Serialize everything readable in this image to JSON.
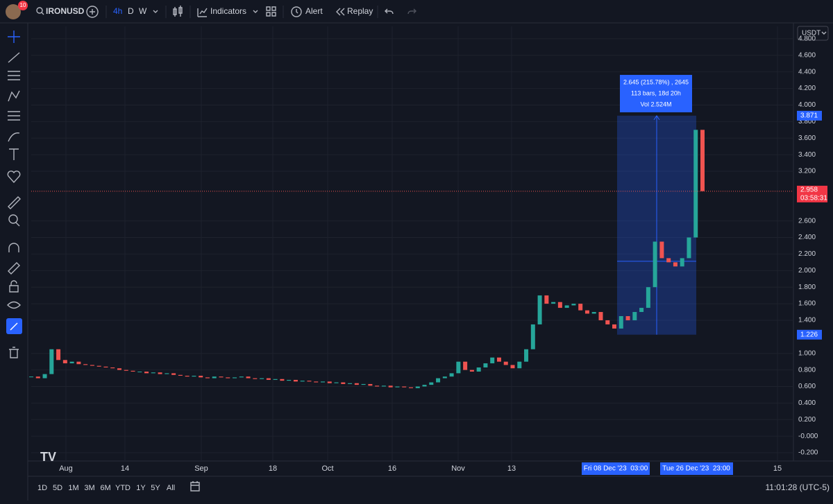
{
  "toolbar": {
    "notifications": "10",
    "symbol": "IRONUSD",
    "intervals": [
      "4h",
      "D",
      "W"
    ],
    "indicators": "Indicators",
    "alert": "Alert",
    "replay": "Replay"
  },
  "chart_data": {
    "type": "candlestick",
    "currency": "USDT",
    "ylim": [
      -0.3,
      4.95
    ],
    "yticks": [
      {
        "value": 4.8,
        "label": "4.800"
      },
      {
        "value": 4.6,
        "label": "4.600"
      },
      {
        "value": 4.4,
        "label": "4.400"
      },
      {
        "value": 4.2,
        "label": "4.200"
      },
      {
        "value": 4.0,
        "label": "4.000"
      },
      {
        "value": 3.8,
        "label": "3.800"
      },
      {
        "value": 3.6,
        "label": "3.600"
      },
      {
        "value": 3.4,
        "label": "3.400"
      },
      {
        "value": 3.2,
        "label": "3.200"
      },
      {
        "value": 2.6,
        "label": "2.600"
      },
      {
        "value": 2.4,
        "label": "2.400"
      },
      {
        "value": 2.2,
        "label": "2.200"
      },
      {
        "value": 2.0,
        "label": "2.000"
      },
      {
        "value": 1.8,
        "label": "1.800"
      },
      {
        "value": 1.6,
        "label": "1.600"
      },
      {
        "value": 1.4,
        "label": "1.400"
      },
      {
        "value": 1.0,
        "label": "1.000"
      },
      {
        "value": 0.8,
        "label": "0.800"
      },
      {
        "value": 0.6,
        "label": "0.600"
      },
      {
        "value": 0.4,
        "label": "0.400"
      },
      {
        "value": 0.2,
        "label": "0.200"
      },
      {
        "value": 0,
        "label": "-0.000"
      },
      {
        "value": -0.2,
        "label": "-0.200"
      }
    ],
    "x_labels": [
      "Aug",
      "14",
      "Sep",
      "18",
      "Oct",
      "16",
      "Nov",
      "13",
      "15"
    ],
    "closes": [
      0.72,
      0.7,
      0.75,
      1.05,
      0.92,
      0.88,
      0.9,
      0.87,
      0.86,
      0.85,
      0.84,
      0.83,
      0.82,
      0.8,
      0.79,
      0.78,
      0.78,
      0.76,
      0.77,
      0.75,
      0.76,
      0.74,
      0.73,
      0.72,
      0.73,
      0.71,
      0.7,
      0.72,
      0.71,
      0.7,
      0.71,
      0.72,
      0.7,
      0.69,
      0.7,
      0.68,
      0.69,
      0.67,
      0.68,
      0.66,
      0.67,
      0.66,
      0.65,
      0.66,
      0.64,
      0.65,
      0.63,
      0.64,
      0.62,
      0.63,
      0.61,
      0.6,
      0.61,
      0.59,
      0.6,
      0.59,
      0.58,
      0.6,
      0.62,
      0.65,
      0.7,
      0.72,
      0.76,
      0.9,
      0.8,
      0.78,
      0.83,
      0.88,
      0.95,
      0.9,
      0.86,
      0.82,
      0.9,
      1.05,
      1.35,
      1.7,
      1.6,
      1.62,
      1.55,
      1.58,
      1.6,
      1.52,
      1.48,
      1.5,
      1.4,
      1.35,
      1.3,
      1.45,
      1.4,
      1.5,
      1.55,
      1.8,
      2.35,
      2.15,
      2.1,
      2.05,
      2.15,
      2.4,
      3.7,
      2.96
    ],
    "current_price": 2.958,
    "countdown": "03:58:31",
    "measure": {
      "high": 3.871,
      "low": 1.226,
      "lines": [
        "2.645 (215.78%) , 2645",
        "113 bars, 18d 20h",
        "Vol 2.524M"
      ],
      "start": "Fri 08 Dec '23  03:00",
      "end": "Tue 26 Dec '23  23:00"
    }
  },
  "ranges": [
    "1D",
    "5D",
    "1M",
    "3M",
    "6M",
    "YTD",
    "1Y",
    "5Y",
    "All"
  ],
  "clock": "11:01:28 (UTC-5)"
}
